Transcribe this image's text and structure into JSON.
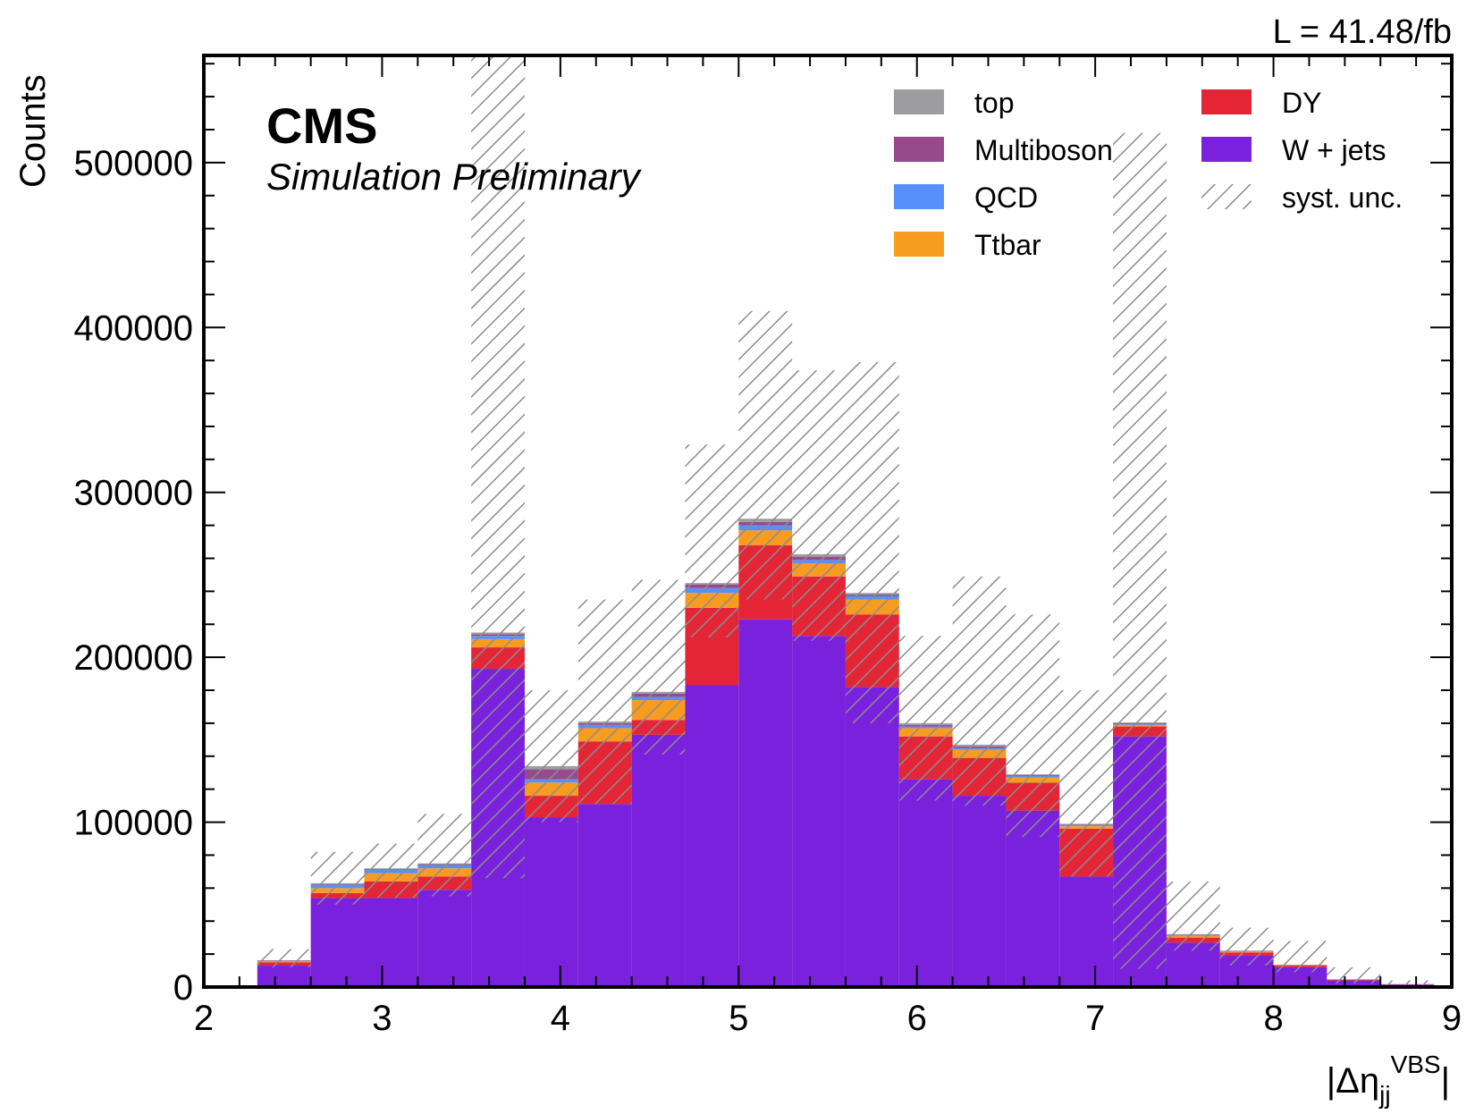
{
  "chart_data": {
    "type": "bar",
    "stacked": true,
    "xlabel": "|Δη",
    "xlabel_sub": "jj",
    "xlabel_sup": "VBS",
    "xlabel_end": "|",
    "ylabel": "Counts",
    "xlim": [
      2,
      9
    ],
    "ylim": [
      0,
      565000
    ],
    "x_ticks": [
      2,
      3,
      4,
      5,
      6,
      7,
      8,
      9
    ],
    "y_ticks": [
      0,
      100000,
      200000,
      300000,
      400000,
      500000
    ],
    "bin_edges": [
      2.3,
      2.6,
      2.9,
      3.2,
      3.5,
      3.8,
      4.1,
      4.4,
      4.7,
      5.0,
      5.3,
      5.6,
      5.9,
      6.2,
      6.5,
      6.8,
      7.1,
      7.4,
      7.7,
      8.0,
      8.3,
      8.6,
      8.9
    ],
    "series": [
      {
        "name": "W + jets",
        "color": "#7a21dd",
        "values": [
          13000,
          54000,
          54000,
          59000,
          193000,
          103000,
          111000,
          153000,
          183000,
          223000,
          213000,
          182000,
          126000,
          116000,
          107000,
          67000,
          152000,
          27000,
          19000,
          12000,
          4000,
          1500,
          1000
        ]
      },
      {
        "name": "DY",
        "color": "#e42536",
        "values": [
          2000,
          3000,
          10000,
          8000,
          13000,
          13000,
          38000,
          9000,
          47000,
          45000,
          36000,
          44000,
          26000,
          23000,
          17000,
          29000,
          6000,
          3000,
          2000,
          1000,
          500,
          200,
          100
        ]
      },
      {
        "name": "Ttbar",
        "color": "#f89c20",
        "values": [
          500,
          3000,
          5000,
          5000,
          5000,
          8000,
          8000,
          12000,
          9000,
          9000,
          8000,
          9000,
          5000,
          5000,
          3000,
          1500,
          1000,
          1000,
          500,
          300,
          100,
          50,
          50
        ]
      },
      {
        "name": "QCD",
        "color": "#5790fc",
        "values": [
          200,
          2000,
          2000,
          2000,
          2000,
          2000,
          2000,
          2000,
          3000,
          3000,
          2000,
          2000,
          1000,
          1000,
          1000,
          500,
          500,
          500,
          200,
          100,
          50,
          20,
          20
        ]
      },
      {
        "name": "Multiboson",
        "color": "#964a8b",
        "values": [
          300,
          500,
          500,
          500,
          1000,
          6000,
          1000,
          2000,
          2000,
          2000,
          2000,
          1000,
          1000,
          1000,
          500,
          500,
          500,
          300,
          200,
          100,
          50,
          20,
          20
        ]
      },
      {
        "name": "top",
        "color": "#9c9ca1",
        "values": [
          200,
          500,
          500,
          500,
          1000,
          2000,
          1000,
          1000,
          1000,
          2000,
          1500,
          1000,
          1000,
          1000,
          500,
          500,
          500,
          300,
          200,
          100,
          50,
          20,
          20
        ]
      }
    ],
    "syst_unc": {
      "name": "syst. unc.",
      "low": [
        12000,
        50000,
        54000,
        55000,
        66000,
        100000,
        111000,
        141000,
        212000,
        235000,
        210000,
        160000,
        113000,
        110000,
        91000,
        67000,
        11000,
        22000,
        13000,
        9000,
        2000,
        500,
        500
      ],
      "high": [
        23000,
        82000,
        87000,
        105000,
        565000,
        180000,
        235000,
        247000,
        329000,
        410000,
        374000,
        379000,
        213000,
        249000,
        226000,
        180000,
        518000,
        64000,
        36000,
        28000,
        12000,
        4000,
        2500
      ]
    },
    "legend": {
      "placement": "top-right",
      "columns": [
        [
          "top",
          "Multiboson",
          "QCD",
          "Ttbar"
        ],
        [
          "DY",
          "W + jets",
          "syst. unc."
        ]
      ]
    },
    "annotations": {
      "experiment": "CMS",
      "status": "Simulation Preliminary",
      "luminosity": "L = 41.48/fb"
    }
  }
}
